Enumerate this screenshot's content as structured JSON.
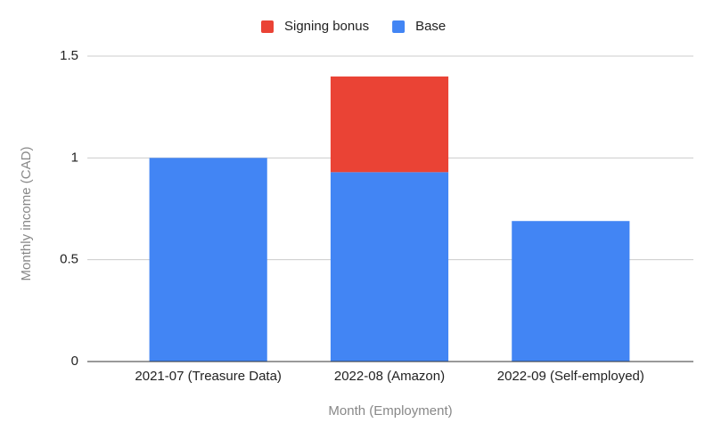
{
  "chart_data": {
    "type": "stacked-bar",
    "x_label": "Month (Employment)",
    "y_label": "Monthly income (CAD)",
    "categories": [
      "2021-07 (Treasure Data)",
      "2022-08 (Amazon)",
      "2022-09 (Self-employed)"
    ],
    "series": [
      {
        "name": "Base",
        "color": "#4285f4",
        "values": [
          1,
          0.93,
          0.69
        ]
      },
      {
        "name": "Signing bonus",
        "color": "#ea4335",
        "values": [
          0,
          0.47,
          0
        ]
      }
    ],
    "ylim": [
      0,
      1.5
    ],
    "yticks": [
      0,
      0.5,
      1,
      1.5
    ],
    "grid": true,
    "legend": "top"
  }
}
